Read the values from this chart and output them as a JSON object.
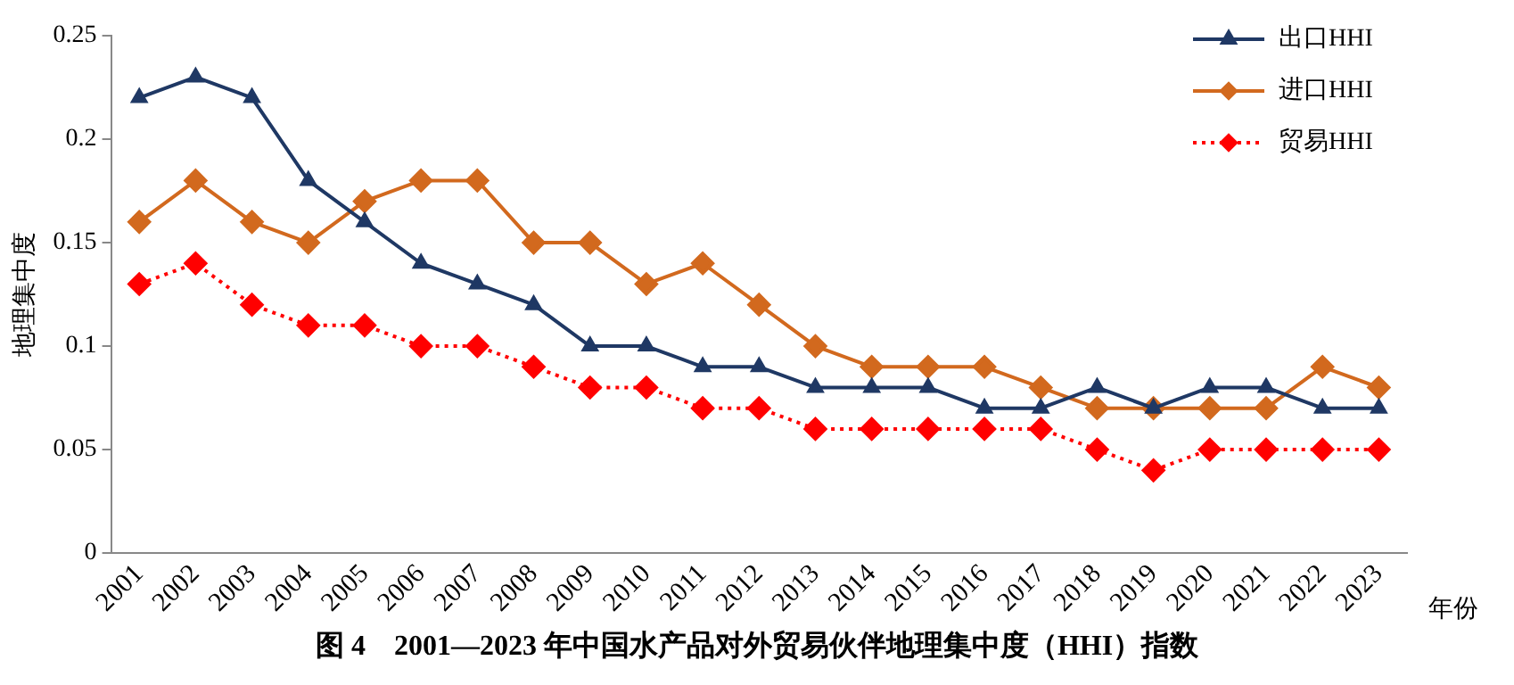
{
  "chart_data": {
    "type": "line",
    "title": "图 4　2001—2023 年中国水产品对外贸易伙伴地理集中度（HHI）指数",
    "xlabel": "年份",
    "ylabel": "地理集中度",
    "categories": [
      "2001",
      "2002",
      "2003",
      "2004",
      "2005",
      "2006",
      "2007",
      "2008",
      "2009",
      "2010",
      "2011",
      "2012",
      "2013",
      "2014",
      "2015",
      "2016",
      "2017",
      "2018",
      "2019",
      "2020",
      "2021",
      "2022",
      "2023"
    ],
    "series": [
      {
        "name": "出口HHI",
        "color": "#1f3864",
        "marker": "triangle",
        "line_style": "solid",
        "values": [
          0.22,
          0.23,
          0.22,
          0.18,
          0.16,
          0.14,
          0.13,
          0.12,
          0.1,
          0.1,
          0.09,
          0.09,
          0.08,
          0.08,
          0.08,
          0.07,
          0.07,
          0.08,
          0.07,
          0.08,
          0.08,
          0.07,
          0.07
        ]
      },
      {
        "name": "进口HHI",
        "color": "#d2691e",
        "marker": "diamond",
        "line_style": "solid",
        "values": [
          0.16,
          0.18,
          0.16,
          0.15,
          0.17,
          0.18,
          0.18,
          0.15,
          0.15,
          0.13,
          0.14,
          0.12,
          0.1,
          0.09,
          0.09,
          0.09,
          0.08,
          0.07,
          0.07,
          0.07,
          0.07,
          0.09,
          0.08
        ]
      },
      {
        "name": "贸易HHI",
        "color": "#ff0000",
        "marker": "diamond",
        "line_style": "dotted",
        "values": [
          0.13,
          0.14,
          0.12,
          0.11,
          0.11,
          0.1,
          0.1,
          0.09,
          0.08,
          0.08,
          0.07,
          0.07,
          0.06,
          0.06,
          0.06,
          0.06,
          0.06,
          0.05,
          0.04,
          0.05,
          0.05,
          0.05,
          0.05
        ]
      }
    ],
    "ylim": [
      0,
      0.25
    ],
    "yticks": [
      0,
      0.05,
      0.1,
      0.15,
      0.2,
      0.25
    ],
    "grid": false,
    "legend": "top right"
  }
}
